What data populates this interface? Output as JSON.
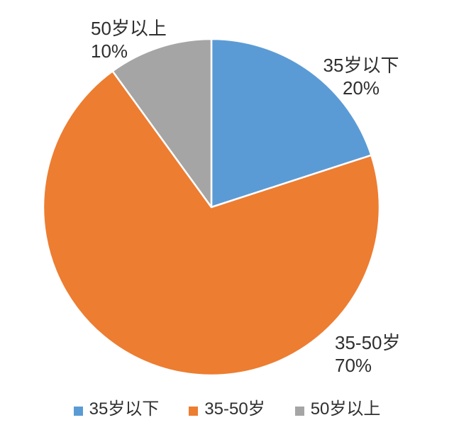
{
  "chart_data": {
    "type": "pie",
    "title": "",
    "categories": [
      "35岁以下",
      "35-50岁",
      "50岁以上"
    ],
    "values": [
      20,
      70,
      10
    ],
    "unit": "%",
    "colors": [
      "#5b9bd5",
      "#ed7d31",
      "#a5a5a5"
    ],
    "start_angle_deg": 0,
    "direction": "clockwise",
    "background": "#ffffff",
    "label_color": "#2f2f2f",
    "slice_labels": [
      {
        "name": "35岁以下",
        "pct": "20%"
      },
      {
        "name": "35-50岁",
        "pct": "70%"
      },
      {
        "name": "50岁以上",
        "pct": "10%"
      }
    ],
    "legend": {
      "position": "bottom",
      "items": [
        {
          "label": "35岁以下",
          "color": "#5b9bd5"
        },
        {
          "label": "35-50岁",
          "color": "#ed7d31"
        },
        {
          "label": "50岁以上",
          "color": "#a5a5a5"
        }
      ]
    }
  }
}
